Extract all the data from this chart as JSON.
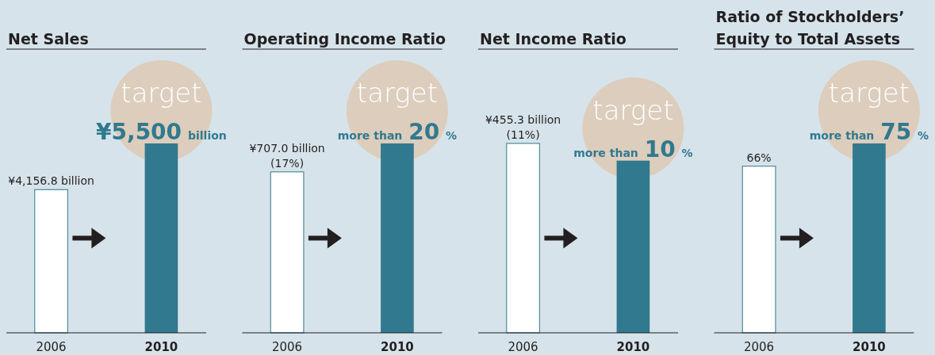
{
  "chart_data": [
    {
      "type": "bar",
      "title": "Net Sales",
      "categories": [
        "2006",
        "2010"
      ],
      "values": [
        4156.8,
        5500
      ],
      "colors": [
        "#ffffff",
        "#31798e"
      ],
      "value_labels": [
        "¥4,156.8 billion",
        "¥5,500 billion"
      ],
      "annotations": [
        "target"
      ]
    },
    {
      "type": "bar",
      "title": "Operating Income Ratio",
      "categories": [
        "2006",
        "2010"
      ],
      "values": [
        17,
        20
      ],
      "colors": [
        "#ffffff",
        "#31798e"
      ],
      "value_labels": [
        "¥707.0 billion (17%)",
        "more than 20 %"
      ],
      "annotations": [
        "target"
      ]
    },
    {
      "type": "bar",
      "title": "Net Income Ratio",
      "categories": [
        "2006",
        "2010"
      ],
      "values": [
        11,
        10
      ],
      "colors": [
        "#ffffff",
        "#31798e"
      ],
      "value_labels": [
        "¥455.3 billion (11%)",
        "more than 10 %"
      ],
      "annotations": [
        "target"
      ]
    },
    {
      "type": "bar",
      "title": "Ratio of Stockholders’ Equity to Total Assets",
      "categories": [
        "2006",
        "2010"
      ],
      "values": [
        66,
        75
      ],
      "colors": [
        "#ffffff",
        "#31798e"
      ],
      "value_labels": [
        "66%",
        "more than 75 %"
      ],
      "annotations": [
        "target"
      ]
    }
  ]
}
